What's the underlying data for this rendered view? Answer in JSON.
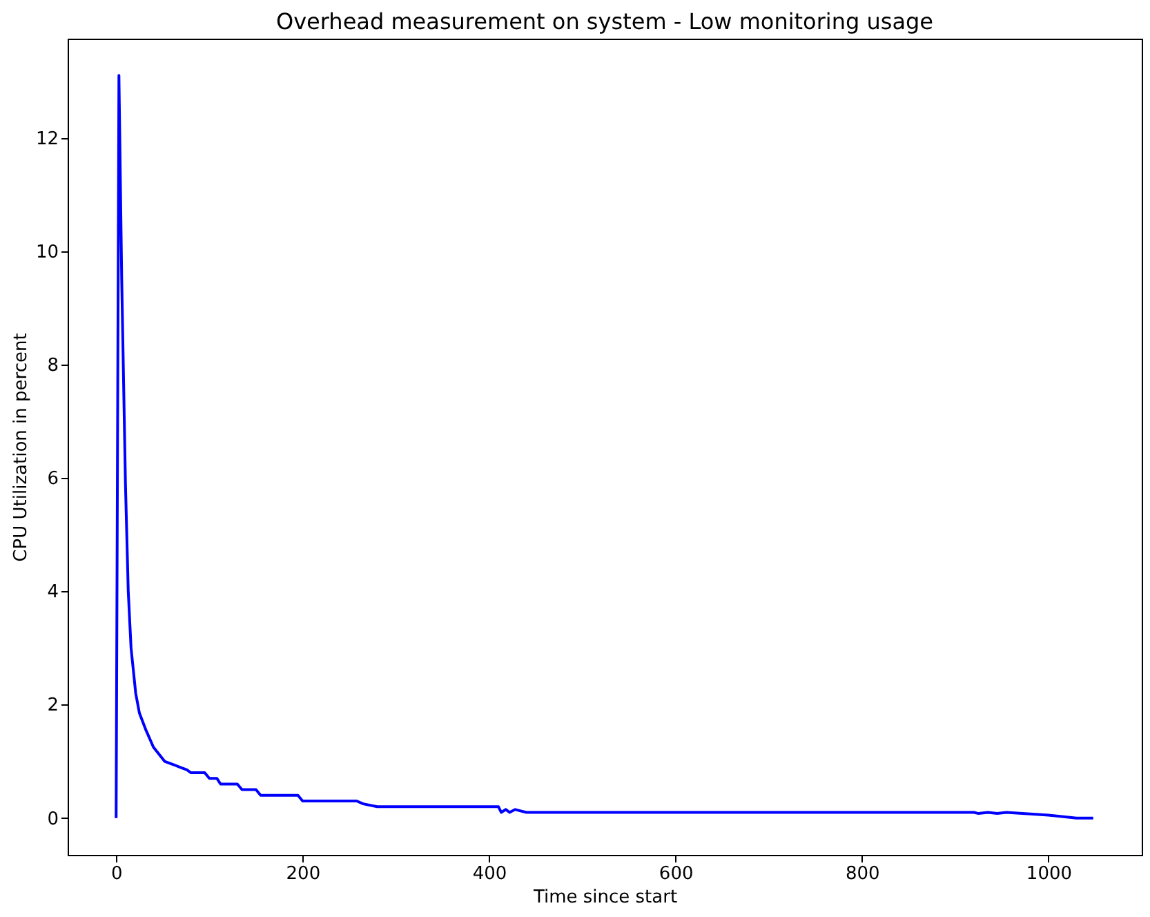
{
  "chart_data": {
    "type": "line",
    "title": "Overhead measurement on system - Low monitoring usage",
    "xlabel": "Time since start",
    "ylabel": "CPU Utilization in percent",
    "x": [
      0,
      3,
      6,
      10,
      13,
      16,
      21,
      25,
      32,
      40,
      52,
      60,
      68,
      76,
      80,
      95,
      100,
      108,
      112,
      130,
      135,
      150,
      155,
      195,
      200,
      258,
      265,
      280,
      410,
      413,
      418,
      422,
      428,
      440,
      920,
      925,
      935,
      945,
      955,
      1000,
      1030,
      1048
    ],
    "series": [
      {
        "color": "#0000ff",
        "values": [
          0,
          13.1,
          9.5,
          5.9,
          4.0,
          3.0,
          2.2,
          1.85,
          1.55,
          1.25,
          1.0,
          0.95,
          0.9,
          0.85,
          0.8,
          0.8,
          0.7,
          0.7,
          0.6,
          0.6,
          0.5,
          0.5,
          0.4,
          0.4,
          0.3,
          0.3,
          0.25,
          0.2,
          0.2,
          0.1,
          0.15,
          0.1,
          0.15,
          0.1,
          0.1,
          0.08,
          0.1,
          0.08,
          0.1,
          0.05,
          0,
          0
        ]
      }
    ],
    "xlim": [
      -52,
      1100
    ],
    "ylim": [
      -0.65,
      13.75
    ],
    "xticks": [
      0,
      200,
      400,
      600,
      800,
      1000
    ],
    "yticks": [
      0,
      2,
      4,
      6,
      8,
      10,
      12
    ],
    "grid": false,
    "line_style": "solid"
  }
}
